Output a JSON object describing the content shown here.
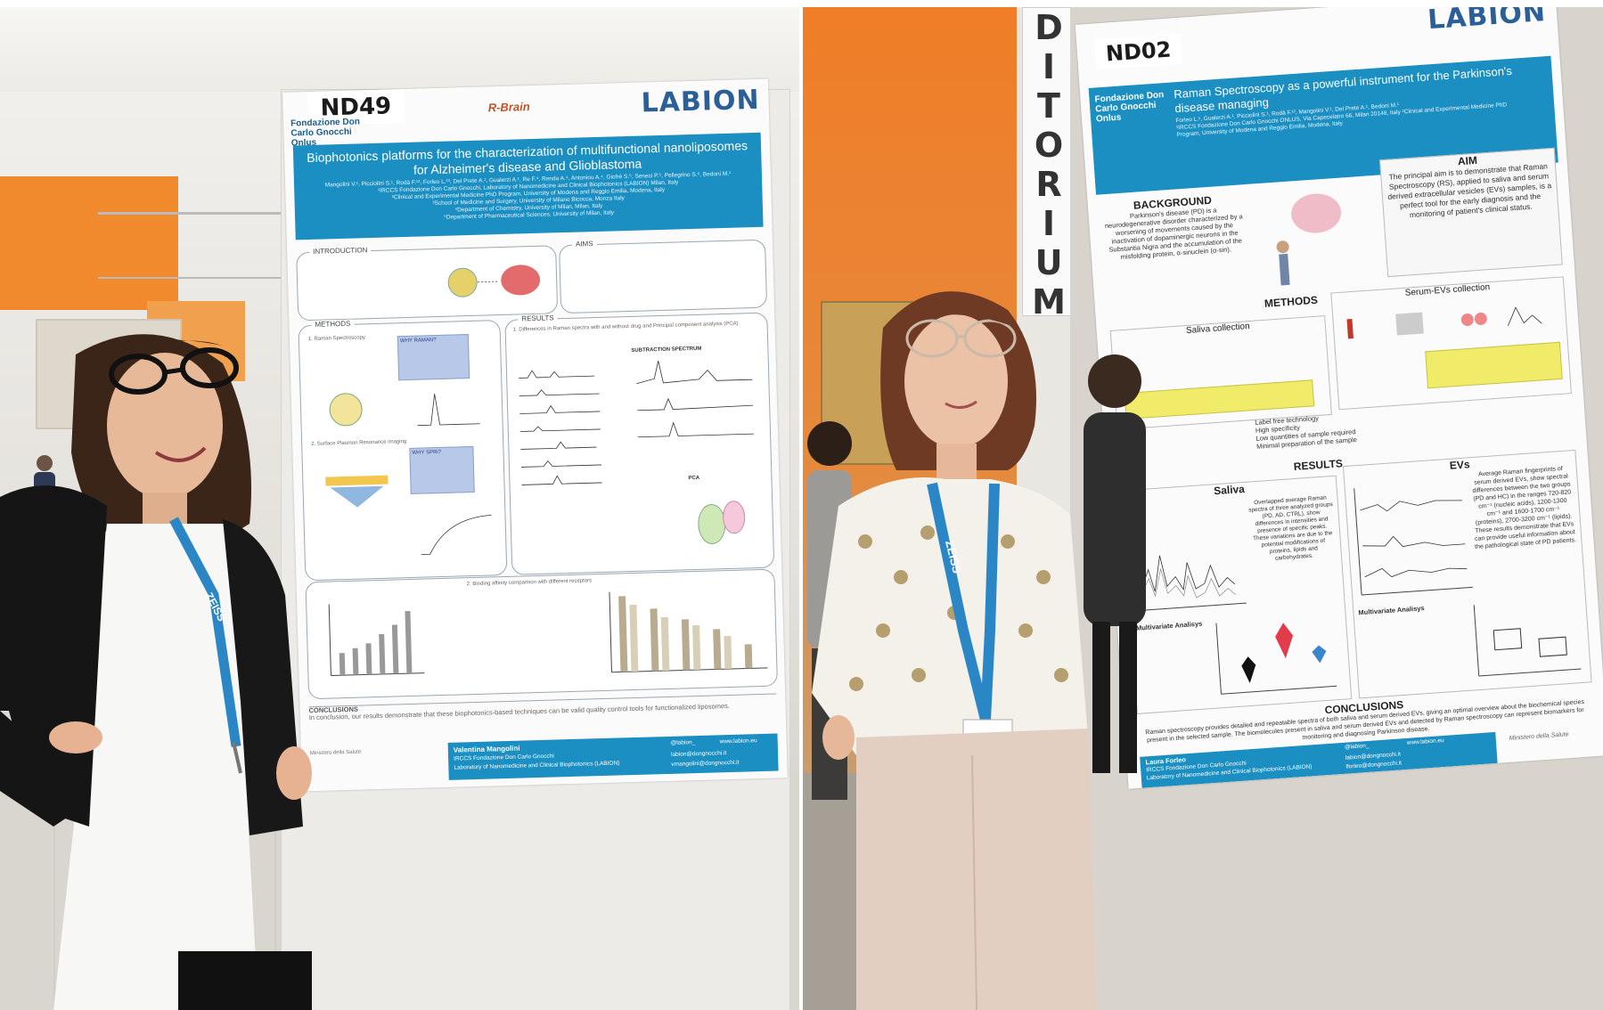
{
  "left_poster": {
    "code": "ND49",
    "org_logo": "Fondazione Don Carlo Gnocchi Onlus",
    "brand": "LABION",
    "project_logo": "R-Brain",
    "title": "Biophotonics platforms for the characterization of multifunctional nanoliposomes for Alzheimer's disease and Glioblastoma",
    "authors": "Mangolini V.¹, Picciolini S.¹, Rodà F.¹², Forleo L.¹³, Del Prete A.¹, Gualerzi A.¹, Re F.⁴, Renda A.⁴, Antoniou A.⁴, Giofrè S.⁵, Seneci P.⁵, Pellegrino S.⁶, Bedoni M.¹",
    "affiliations": [
      "¹IRCCS Fondazione Don Carlo Gnocchi, Laboratory of Nanomedicine and Clinical Biophotonics (LABION) Milan, Italy",
      "²Clinical and Experimental Medicine PhD Program, University of Modena and Reggio Emilia, Modena, Italy",
      "³School of Medicine and Surgery, University of Milano Bicocca, Monza Italy",
      "⁴Department of Chemistry, University of Milan, Milan, Italy",
      "⁵Department of Pharmaceutical Sciences, University of Milan, Italy"
    ],
    "sections": {
      "introduction": "INTRODUCTION",
      "aims": "AIMS",
      "methods": "METHODS",
      "results": "RESULTS",
      "conclusions": "CONCLUSIONS"
    },
    "methods_items": [
      "1. Raman Spectroscopy",
      "2. Surface Plasmon Resonance imaging"
    ],
    "why_raman": "WHY RAMAN?",
    "why_spri": "WHY SPRi?",
    "results_heading_1": "1. Differences in Raman spectra with and without drug and Principal component analysis (PCA)",
    "subtraction": "SUBTRACTION SPECTRUM",
    "pca": "PCA",
    "results_heading_2": "2. Binding affinity comparison with different receptors",
    "conclusion_text": "In conclusion, our results demonstrate that these biophotonics-based techniques can be valid quality control tools for functionalized liposomes.",
    "presenter": "Valentina Mangolini",
    "presenter_org": "IRCCS Fondazione Don Carlo Gnocchi",
    "presenter_lab": "Laboratory of Nanomedicine and Clinical Biophotonics (LABION)",
    "contact_social": "@labion_",
    "contact_web": "www.labion.eu",
    "contact_email_1": "labion@dongnocchi.it",
    "contact_email_2": "vmangolini@dongnocchi.it",
    "ministry": "Ministero della Salute"
  },
  "right_poster": {
    "code": "ND02",
    "org_logo": "Fondazione Don Carlo Gnocchi Onlus",
    "brand": "LABION",
    "title": "Raman Spectroscopy as a powerful instrument for the Parkinson's disease managing",
    "authors": "Forleo L.¹, Gualerzi A.¹, Picciolini S.¹, Rodà F.¹², Mangolini V.¹, Del Prete A.¹, Bedoni M.¹",
    "affiliation": "¹IRCCS Fondazione Don Carlo Gnocchi ONLUS, Via Capecelatro 66, Milan 20148, Italy ²Clinical and Experimental Medicine PhD Program, University of Modena and Reggio Emilia, Modena, Italy",
    "background_h": "BACKGROUND",
    "background": "Parkinson's disease (PD) is a neurodegenerative disorder characterized by a worsening of movements caused by the inactivation of dopaminergic neurons in the Substantia Nigra and the accumulation of the misfolding protein, α-sinuclein (α-sin).",
    "aim_h": "AIM",
    "aim": "The principal aim is to demonstrate that Raman Spectroscopy (RS), applied to saliva and serum derived extracellular vesicles (EVs) samples, is a perfect tool for the early diagnosis and the monitoring of patient's clinical status.",
    "methods_h": "METHODS",
    "saliva_collection": "Saliva collection",
    "serum_collection": "Serum-EVs collection",
    "method_points": [
      "Label free technology",
      "High specificity",
      "Low quantities of sample required",
      "Minimal preparation of the sample"
    ],
    "results_h": "RESULTS",
    "saliva": "Saliva",
    "evs": "EVs",
    "saliva_note": "Overlapped average Raman spectra of three analyzed groups (PD, AD, CTRL), show differences in intensities and presence of specific peaks. These variations are due to the potential modifications of proteins, lipids and carbohydrates.",
    "evs_note": "Average Raman fingerprints of serum derived EVs, show spectral differences between the two groups (PD and HC) in the ranges 720-820 cm⁻¹ (nucleic acids), 1200-1300 cm⁻¹ and 1600-1700 cm⁻¹ (proteins), 2700-3200 cm⁻¹ (lipids). These results demonstrate that EVs can provide useful information about the pathological state of PD patients.",
    "multivariate_h": "Multivariate Analisys",
    "conclusions_h": "CONCLUSIONS",
    "conclusions": "Raman spectroscopy provides detailed and repeatable spectra of both saliva and serum derived EVs, giving an optimal overview about the biochemical species present in the selected sample. The biomolecules present in saliva and serum derived EVs and detected by Raman spectroscopy can represent biomarkers for monitoring and diagnosing Parkinson disease.",
    "presenter": "Laura Forleo",
    "presenter_org": "IRCCS Fondazione Don Carlo Gnocchi",
    "presenter_lab": "Laboratory of Nanomedicine and Clinical Biophotonics (LABION)",
    "contact_social": "@labion_",
    "contact_web": "www.labion.eu",
    "contact_email_1": "labion@dongnocchi.it",
    "contact_email_2": "lforleo@dongnocchi.it",
    "ministry": "Ministero della Salute"
  },
  "signage": {
    "letters": [
      "D",
      "I",
      "T",
      "O",
      "R",
      "I",
      "U",
      "M"
    ]
  },
  "lanyard": {
    "text": "ZEISS"
  },
  "colors": {
    "poster_blue": "#1b8fc2",
    "wall_orange": "#f08a2c",
    "lanyard_blue": "#2a86c5"
  }
}
